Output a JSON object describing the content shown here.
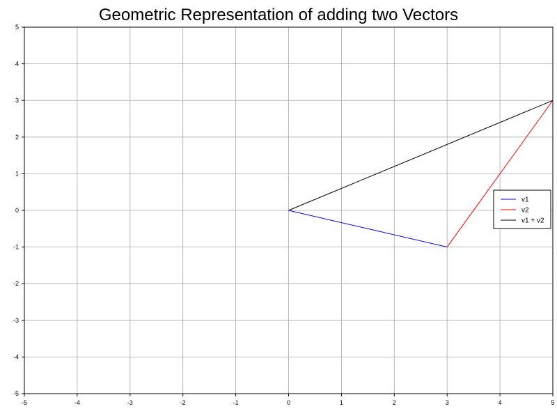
{
  "chart_data": {
    "type": "line",
    "title": "Geometric Representation of adding two Vectors",
    "xlabel": "",
    "ylabel": "",
    "xlim": [
      -5,
      5
    ],
    "ylim": [
      -5,
      5
    ],
    "x_ticks": [
      -5,
      -4,
      -3,
      -2,
      -1,
      0,
      1,
      2,
      3,
      4,
      5
    ],
    "y_ticks": [
      -5,
      -4,
      -3,
      -2,
      -1,
      0,
      1,
      2,
      3,
      4,
      5
    ],
    "grid": true,
    "legend_position": "right",
    "series": [
      {
        "name": "v1",
        "color": "#0000ff",
        "points": [
          [
            0,
            0
          ],
          [
            3,
            -1
          ]
        ]
      },
      {
        "name": "v2",
        "color": "#ff0000",
        "points": [
          [
            3,
            -1
          ],
          [
            5,
            3
          ]
        ]
      },
      {
        "name": "v1 + v2",
        "color": "#000000",
        "points": [
          [
            0,
            0
          ],
          [
            5,
            3
          ]
        ]
      }
    ]
  }
}
